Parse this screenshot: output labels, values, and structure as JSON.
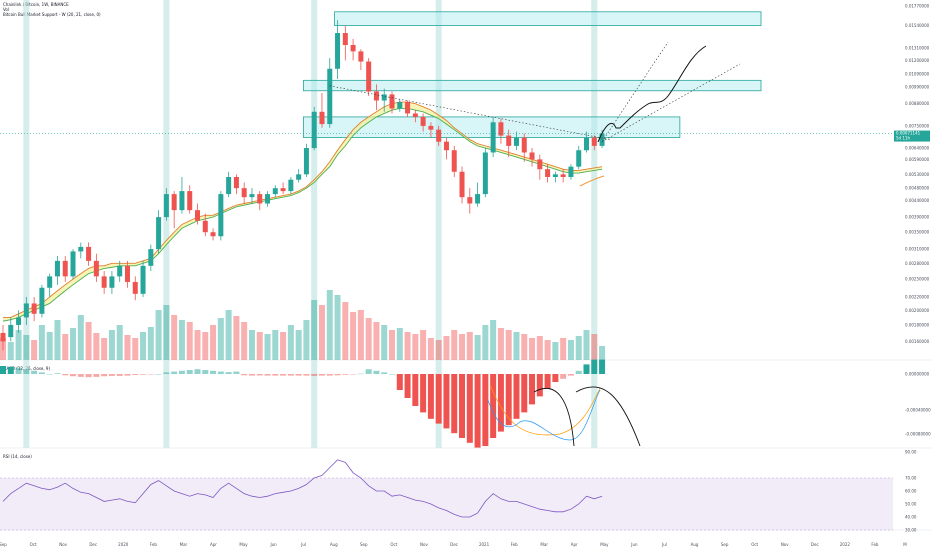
{
  "header": {
    "symbol_line": "Chainlink / Bitcoin, 1W, BINANCE",
    "vol_label": "Vol",
    "indicator_label": "Bitcoin Bull Market Support - W (20, 21, close, 0)"
  },
  "macd_label": "MACD (12, 26, close, 9)",
  "rsi_label": "RSI (14, close)",
  "last_price": {
    "value": "0.00071141",
    "countdown": "5d 11h",
    "color": "#26a69a"
  },
  "colors": {
    "up": "#26a69a",
    "down": "#ef5350",
    "ma_fast": "#e07f2e",
    "ma_slow": "#4caf50",
    "band_fill": "#f4ef9a",
    "zone_fill": "#b2ebf2",
    "zone_border": "#26a69a",
    "highlight": "#b2dfdb",
    "rsi_band": "#ede7f6",
    "rsi_line": "#7e57c2",
    "macd_line": "#2196f3",
    "signal_line": "#ff9800"
  },
  "chart_data": [
    {
      "type": "candlestick",
      "name": "price",
      "price_axis_ticks": [
        "0.01770000",
        "0.01540000",
        "0.01310000",
        "0.01200000",
        "0.01090000",
        "0.00990000",
        "0.00880000",
        "0.00750000",
        "0.00640000",
        "0.00590000",
        "0.00530000",
        "0.00480000",
        "0.00440000",
        "0.00390000",
        "0.00350000",
        "0.00310000",
        "0.00280000",
        "0.00250000",
        "0.00220000",
        "0.00200000",
        "0.00180000",
        "0.00160000"
      ],
      "x_axis_labels": [
        "Sep",
        "Oct",
        "Nov",
        "Dec",
        "2020",
        "Feb",
        "Mar",
        "Apr",
        "May",
        "Jun",
        "Jul",
        "Aug",
        "Sep",
        "Oct",
        "Nov",
        "Dec",
        "2021",
        "Feb",
        "Mar",
        "Apr",
        "May",
        "Jun",
        "Jul",
        "Aug",
        "Sep",
        "Oct",
        "Nov",
        "Dec",
        "2022",
        "Feb",
        "M"
      ],
      "candles": [
        [
          1.7,
          1.6,
          1.8,
          1.5
        ],
        [
          1.65,
          1.8,
          1.9,
          1.6
        ],
        [
          1.8,
          1.9,
          2.0,
          1.7
        ],
        [
          1.9,
          2.1,
          2.2,
          1.8
        ],
        [
          2.1,
          1.95,
          2.2,
          1.85
        ],
        [
          1.95,
          2.35,
          2.4,
          1.9
        ],
        [
          2.35,
          2.55,
          2.6,
          2.2
        ],
        [
          2.55,
          2.85,
          2.95,
          2.4
        ],
        [
          2.85,
          2.55,
          2.95,
          2.45
        ],
        [
          2.55,
          3.05,
          3.1,
          2.5
        ],
        [
          3.05,
          3.15,
          3.25,
          2.9
        ],
        [
          3.15,
          2.85,
          3.25,
          2.75
        ],
        [
          2.85,
          2.55,
          3.0,
          2.45
        ],
        [
          2.55,
          2.35,
          2.65,
          2.25
        ],
        [
          2.35,
          2.55,
          2.65,
          2.25
        ],
        [
          2.55,
          2.75,
          2.85,
          2.45
        ],
        [
          2.75,
          2.45,
          2.85,
          2.35
        ],
        [
          2.45,
          2.25,
          2.55,
          2.15
        ],
        [
          2.25,
          2.75,
          2.85,
          2.2
        ],
        [
          2.75,
          3.1,
          3.2,
          2.65
        ],
        [
          3.1,
          3.9,
          4.1,
          3.0
        ],
        [
          3.9,
          4.6,
          4.8,
          3.8
        ],
        [
          4.6,
          4.1,
          4.7,
          3.6
        ],
        [
          4.1,
          4.7,
          5.2,
          4.0
        ],
        [
          4.7,
          4.1,
          4.9,
          4.0
        ],
        [
          4.1,
          3.8,
          4.3,
          3.7
        ],
        [
          3.8,
          3.5,
          4.0,
          3.4
        ],
        [
          3.5,
          3.4,
          3.6,
          3.3
        ],
        [
          3.4,
          4.6,
          4.7,
          3.3
        ],
        [
          4.6,
          5.2,
          5.4,
          4.5
        ],
        [
          5.2,
          4.8,
          5.3,
          4.6
        ],
        [
          4.8,
          4.5,
          5.0,
          4.3
        ],
        [
          4.5,
          4.6,
          4.8,
          4.3
        ],
        [
          4.6,
          4.3,
          4.7,
          4.1
        ],
        [
          4.3,
          4.6,
          4.7,
          4.2
        ],
        [
          4.6,
          4.8,
          4.9,
          4.5
        ],
        [
          4.8,
          4.7,
          5.0,
          4.6
        ],
        [
          4.7,
          5.1,
          5.2,
          4.6
        ],
        [
          5.1,
          5.3,
          5.5,
          5.0
        ],
        [
          5.3,
          6.4,
          6.6,
          5.2
        ],
        [
          6.4,
          8.3,
          8.6,
          6.3
        ],
        [
          8.3,
          7.6,
          9.5,
          7.4
        ],
        [
          7.6,
          11.3,
          12.2,
          7.4
        ],
        [
          11.3,
          14.6,
          16.0,
          10.5
        ],
        [
          14.6,
          13.4,
          15.4,
          12.0
        ],
        [
          13.4,
          12.8,
          14.0,
          12.0
        ],
        [
          12.8,
          11.9,
          13.0,
          11.2
        ],
        [
          11.9,
          9.6,
          12.2,
          9.3
        ],
        [
          9.6,
          9.0,
          10.1,
          8.4
        ],
        [
          9.0,
          9.4,
          9.8,
          8.3
        ],
        [
          9.4,
          8.5,
          9.6,
          8.2
        ],
        [
          8.5,
          8.9,
          9.1,
          8.3
        ],
        [
          8.9,
          8.2,
          9.0,
          8.0
        ],
        [
          8.2,
          8.0,
          8.4,
          7.7
        ],
        [
          8.0,
          7.5,
          8.2,
          7.2
        ],
        [
          7.5,
          7.3,
          7.7,
          6.9
        ],
        [
          7.3,
          6.7,
          7.5,
          6.5
        ],
        [
          6.7,
          6.3,
          6.9,
          5.9
        ],
        [
          6.3,
          5.4,
          6.5,
          5.2
        ],
        [
          5.4,
          4.5,
          5.6,
          4.3
        ],
        [
          4.5,
          4.3,
          4.8,
          4.0
        ],
        [
          4.3,
          4.6,
          5.0,
          4.2
        ],
        [
          4.6,
          6.2,
          6.4,
          4.5
        ],
        [
          6.2,
          7.7,
          8.0,
          6.0
        ],
        [
          7.7,
          7.0,
          7.9,
          6.6
        ],
        [
          7.0,
          6.5,
          7.3,
          6.0
        ],
        [
          6.5,
          6.9,
          7.2,
          6.3
        ],
        [
          6.9,
          6.2,
          7.1,
          5.8
        ],
        [
          6.2,
          5.9,
          6.4,
          5.6
        ],
        [
          5.9,
          5.5,
          6.1,
          5.1
        ],
        [
          5.5,
          5.2,
          5.7,
          5.0
        ],
        [
          5.2,
          5.3,
          5.4,
          5.0
        ],
        [
          5.3,
          5.2,
          5.5,
          5.0
        ],
        [
          5.2,
          5.6,
          5.7,
          5.1
        ],
        [
          5.6,
          6.3,
          6.5,
          5.5
        ],
        [
          6.3,
          6.9,
          7.2,
          6.2
        ],
        [
          6.9,
          6.5,
          7.0,
          6.3
        ],
        [
          6.5,
          7.1,
          7.3,
          6.4
        ]
      ],
      "ma_fast": [
        1.9,
        1.9,
        1.95,
        2.0,
        2.05,
        2.1,
        2.2,
        2.3,
        2.4,
        2.5,
        2.6,
        2.7,
        2.75,
        2.75,
        2.8,
        2.8,
        2.8,
        2.8,
        2.85,
        2.9,
        3.1,
        3.3,
        3.5,
        3.7,
        3.8,
        3.9,
        3.95,
        3.95,
        4.05,
        4.15,
        4.25,
        4.3,
        4.35,
        4.4,
        4.45,
        4.5,
        4.55,
        4.6,
        4.7,
        4.85,
        5.1,
        5.4,
        5.8,
        6.3,
        6.8,
        7.3,
        7.7,
        8.0,
        8.3,
        8.6,
        8.8,
        8.9,
        8.9,
        8.8,
        8.6,
        8.4,
        8.1,
        7.8,
        7.4,
        7.1,
        6.8,
        6.6,
        6.5,
        6.4,
        6.3,
        6.2,
        6.1,
        6.0,
        5.9,
        5.8,
        5.7,
        5.6,
        5.5,
        5.45,
        5.45,
        5.5,
        5.55,
        5.6
      ],
      "ma_slow": [
        1.85,
        1.87,
        1.9,
        1.95,
        2.0,
        2.05,
        2.1,
        2.2,
        2.3,
        2.4,
        2.5,
        2.6,
        2.65,
        2.7,
        2.72,
        2.75,
        2.75,
        2.75,
        2.8,
        2.85,
        3.0,
        3.2,
        3.4,
        3.6,
        3.7,
        3.8,
        3.85,
        3.9,
        4.0,
        4.1,
        4.2,
        4.25,
        4.3,
        4.35,
        4.4,
        4.45,
        4.5,
        4.55,
        4.65,
        4.8,
        5.0,
        5.3,
        5.6,
        6.1,
        6.5,
        7.0,
        7.4,
        7.7,
        8.0,
        8.2,
        8.4,
        8.5,
        8.5,
        8.4,
        8.3,
        8.1,
        7.9,
        7.6,
        7.3,
        7.0,
        6.7,
        6.5,
        6.4,
        6.3,
        6.2,
        6.1,
        6.0,
        5.9,
        5.8,
        5.7,
        5.6,
        5.5,
        5.4,
        5.35,
        5.35,
        5.4,
        5.45,
        5.5
      ],
      "volume": [
        22,
        18,
        30,
        25,
        20,
        35,
        28,
        40,
        26,
        32,
        45,
        38,
        27,
        22,
        30,
        35,
        25,
        22,
        28,
        33,
        50,
        55,
        45,
        40,
        38,
        30,
        28,
        35,
        42,
        50,
        44,
        38,
        30,
        28,
        26,
        30,
        28,
        35,
        30,
        40,
        60,
        55,
        70,
        65,
        58,
        48,
        50,
        42,
        38,
        35,
        30,
        32,
        28,
        26,
        30,
        22,
        20,
        24,
        30,
        26,
        28,
        25,
        35,
        40,
        32,
        30,
        28,
        26,
        22,
        24,
        20,
        18,
        22,
        20,
        24,
        30,
        26,
        14
      ],
      "zones": [
        {
          "from_index": 43,
          "to_index": 104,
          "top": 17.0,
          "bottom": 15.4
        },
        {
          "from_index": 39,
          "to_index": 101,
          "top": 10.4,
          "bottom": 9.65
        },
        {
          "from_index": 39,
          "to_index": 87,
          "top": 8.0,
          "bottom": 6.9
        }
      ],
      "highlight_bands": [
        3,
        21,
        40,
        56,
        76
      ]
    },
    {
      "type": "bar",
      "name": "MACD",
      "axis_ticks": [
        "0.00000000",
        "-0.00040000",
        "-0.00080000"
      ],
      "histogram": [
        0.5,
        0.45,
        0.4,
        0.3,
        0.2,
        0.1,
        0.0,
        0.05,
        -0.08,
        -0.14,
        -0.18,
        -0.2,
        -0.18,
        -0.14,
        -0.12,
        -0.12,
        -0.1,
        -0.06,
        -0.04,
        -0.03,
        0.0,
        0.1,
        0.15,
        0.2,
        0.25,
        0.3,
        0.25,
        0.2,
        0.15,
        0.12,
        0.15,
        -0.08,
        -0.1,
        -0.09,
        -0.1,
        -0.1,
        -0.1,
        -0.1,
        -0.1,
        -0.1,
        -0.12,
        -0.1,
        -0.1,
        -0.08,
        -0.05,
        -0.02,
        0.02,
        0.3,
        0.2,
        0.1,
        0.0,
        -1.0,
        -1.5,
        -2.0,
        -2.4,
        -2.8,
        -3.1,
        -3.4,
        -3.7,
        -4.0,
        -4.3,
        -4.6,
        -4.5,
        -4.0,
        -3.6,
        -3.2,
        -2.8,
        -2.4,
        -1.9,
        -1.4,
        -0.9,
        -0.5,
        -0.3,
        -0.1,
        0.2,
        0.6,
        0.9,
        0.9
      ]
    },
    {
      "type": "line",
      "name": "RSI",
      "axis_ticks": [
        "90.00",
        "70.00",
        "60.00",
        "50.00",
        "40.00",
        "30.00"
      ],
      "values": [
        52,
        58,
        62,
        66,
        64,
        62,
        61,
        63,
        66,
        62,
        59,
        58,
        55,
        52,
        53,
        54,
        52,
        51,
        58,
        65,
        68,
        64,
        60,
        58,
        56,
        58,
        57,
        55,
        62,
        66,
        62,
        58,
        56,
        55,
        56,
        58,
        59,
        60,
        62,
        65,
        70,
        72,
        78,
        84,
        82,
        74,
        70,
        64,
        60,
        60,
        56,
        57,
        55,
        53,
        52,
        50,
        47,
        45,
        42,
        40,
        40,
        43,
        52,
        58,
        54,
        52,
        52,
        50,
        48,
        46,
        45,
        44,
        44,
        46,
        50,
        56,
        54,
        56
      ],
      "ylim": [
        30,
        90
      ]
    }
  ]
}
